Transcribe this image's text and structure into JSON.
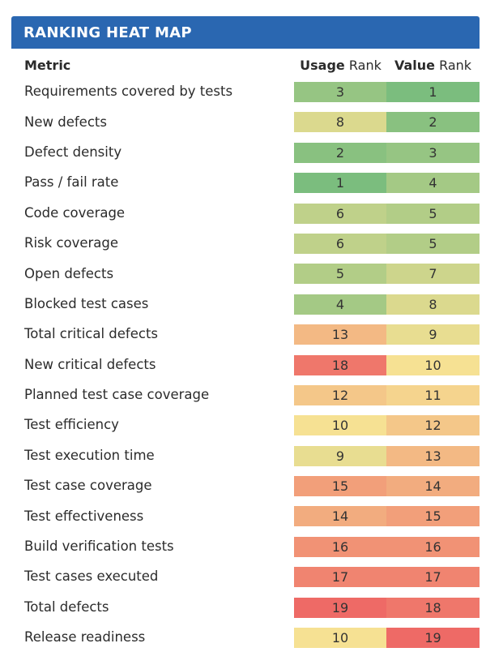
{
  "title": "RANKING HEAT MAP",
  "headers": {
    "metric": "Metric",
    "usage_bold": "Usage",
    "usage_rest": " Rank",
    "value_bold": "Value",
    "value_rest": " Rank"
  },
  "chart_data": {
    "type": "heatmap",
    "title": "RANKING HEAT MAP",
    "columns": [
      "Usage Rank",
      "Value Rank"
    ],
    "scale": {
      "min": 1,
      "max": 19,
      "low_color": "#7bbd7e",
      "mid_color": "#f6e193",
      "high_color": "#ee6a66"
    },
    "rows": [
      {
        "metric": "Requirements covered by tests",
        "usage": 3,
        "value": 1
      },
      {
        "metric": "New defects",
        "usage": 8,
        "value": 2
      },
      {
        "metric": "Defect density",
        "usage": 2,
        "value": 3
      },
      {
        "metric": "Pass / fail rate",
        "usage": 1,
        "value": 4
      },
      {
        "metric": "Code coverage",
        "usage": 6,
        "value": 5
      },
      {
        "metric": "Risk coverage",
        "usage": 6,
        "value": 5
      },
      {
        "metric": "Open defects",
        "usage": 5,
        "value": 7
      },
      {
        "metric": "Blocked test cases",
        "usage": 4,
        "value": 8
      },
      {
        "metric": "Total critical defects",
        "usage": 13,
        "value": 9
      },
      {
        "metric": "New critical defects",
        "usage": 18,
        "value": 10
      },
      {
        "metric": "Planned test case coverage",
        "usage": 12,
        "value": 11
      },
      {
        "metric": "Test efficiency",
        "usage": 10,
        "value": 12
      },
      {
        "metric": "Test execution time",
        "usage": 9,
        "value": 13
      },
      {
        "metric": "Test case coverage",
        "usage": 15,
        "value": 14
      },
      {
        "metric": "Test effectiveness",
        "usage": 14,
        "value": 15
      },
      {
        "metric": "Build verification tests",
        "usage": 16,
        "value": 16
      },
      {
        "metric": "Test cases executed",
        "usage": 17,
        "value": 17
      },
      {
        "metric": "Total defects",
        "usage": 19,
        "value": 18
      },
      {
        "metric": "Release readiness",
        "usage": 10,
        "value": 19
      }
    ]
  }
}
